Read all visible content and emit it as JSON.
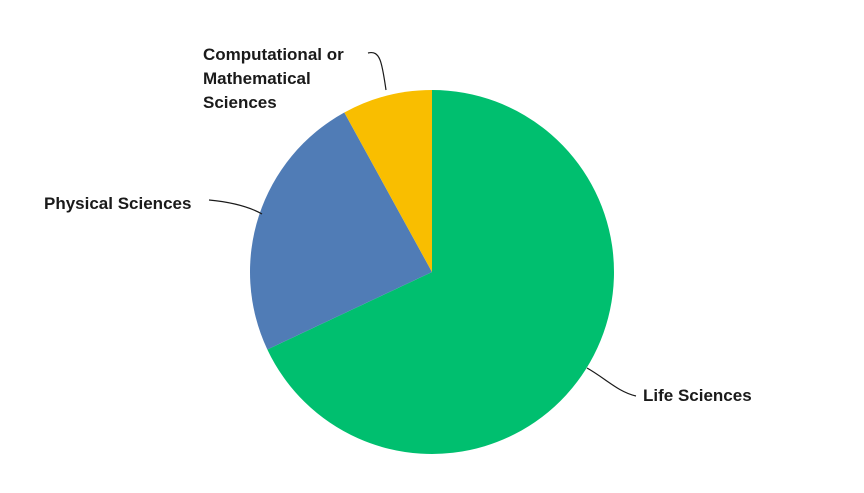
{
  "chart_data": {
    "type": "pie",
    "slices": [
      {
        "label": "Life Sciences",
        "value": 68,
        "color": "#00bf6f"
      },
      {
        "label": "Physical Sciences",
        "value": 24,
        "color": "#507cb6"
      },
      {
        "label": "Computational or Mathematical Sciences",
        "value": 8,
        "color": "#f9be00"
      }
    ],
    "start_angle_deg": 0,
    "direction": "clockwise",
    "legend": "none",
    "labels": {
      "life": "Life Sciences",
      "physical": "Physical Sciences",
      "computational_lines": [
        "Computational or",
        "Mathematical",
        "Sciences"
      ]
    }
  }
}
